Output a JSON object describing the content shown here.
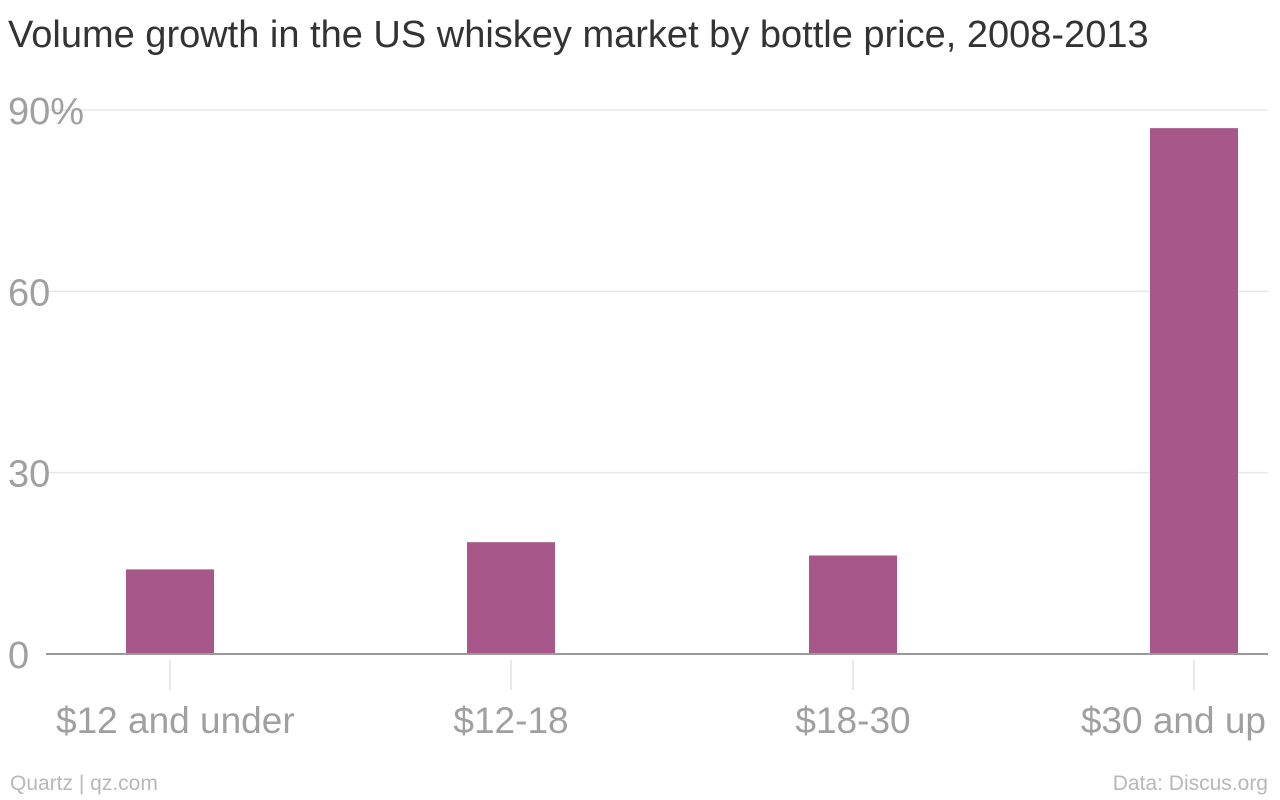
{
  "chart_data": {
    "type": "bar",
    "title": "Volume growth in the US whiskey market by bottle price, 2008-2013",
    "categories": [
      "$12 and under",
      "$12-18",
      "$18-30",
      "$30 and up"
    ],
    "values": [
      14,
      18.5,
      16.3,
      87
    ],
    "ylim": [
      0,
      90
    ],
    "yticks": [
      {
        "value": 0,
        "label": "0"
      },
      {
        "value": 30,
        "label": "30"
      },
      {
        "value": 60,
        "label": "60"
      },
      {
        "value": 90,
        "label": "90%"
      }
    ],
    "grid": true,
    "bar_color": "#a8578a"
  },
  "footer": {
    "source_left": "Quartz | qz.com",
    "source_right": "Data: Discus.org"
  }
}
